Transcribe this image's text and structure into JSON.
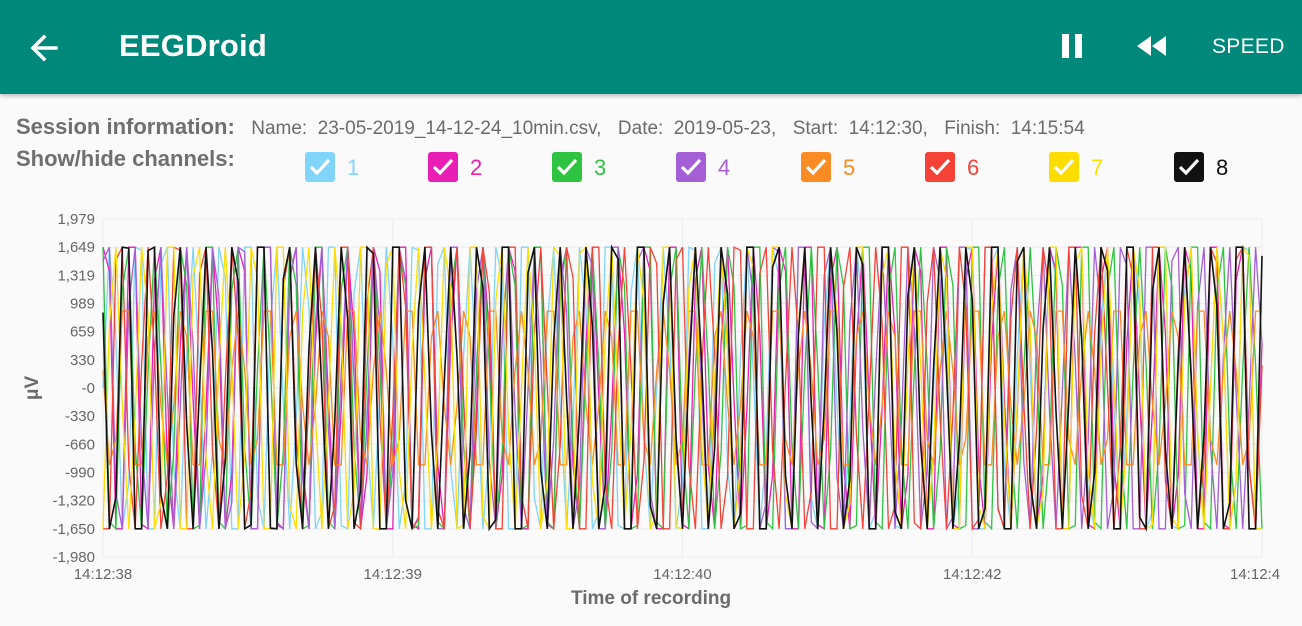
{
  "appbar": {
    "title": "EEGDroid",
    "speed_label": "SPEED",
    "back_icon": "arrow-left-icon",
    "pause_icon": "pause-icon",
    "rewind_icon": "rewind-icon",
    "background": "#00897b"
  },
  "session": {
    "label": "Session information:",
    "name_key": "Name:",
    "name_value": "23-05-2019_14-12-24_10min.csv,",
    "date_key": "Date:",
    "date_value": "2019-05-23,",
    "start_key": "Start:",
    "start_value": "14:12:30,",
    "finish_key": "Finish:",
    "finish_value": "14:15:54"
  },
  "channels": {
    "label": "Show/hide channels:",
    "items": [
      {
        "label": "1",
        "color": "#81d4fa",
        "checked": true
      },
      {
        "label": "2",
        "color": "#e91eb4",
        "checked": true
      },
      {
        "label": "3",
        "color": "#2ec442",
        "checked": true
      },
      {
        "label": "4",
        "color": "#a45fd6",
        "checked": true
      },
      {
        "label": "5",
        "color": "#fb8c24",
        "checked": true
      },
      {
        "label": "6",
        "color": "#f44336",
        "checked": true
      },
      {
        "label": "7",
        "color": "#ffdd00",
        "checked": true
      },
      {
        "label": "8",
        "color": "#111111",
        "checked": true
      }
    ]
  },
  "chart_data": {
    "type": "line",
    "xlabel": "Time of recording",
    "ylabel": "μV",
    "y_ticks": [
      "1,979",
      "1,649",
      "1,319",
      "989",
      "659",
      "330",
      "-0",
      "-330",
      "-660",
      "-990",
      "-1,320",
      "-1,650",
      "-1,980"
    ],
    "ylim": [
      -1980,
      1979
    ],
    "x_ticks": [
      "14:12:38",
      "14:12:39",
      "14:12:40",
      "14:12:42",
      "14:12:4"
    ],
    "grid": true,
    "legend": "none",
    "clip_range": [
      -1650,
      1649
    ],
    "series": [
      {
        "color": "#81d4fa",
        "amplitude": 1649,
        "period_samples": 4.3,
        "phase": 0.0
      },
      {
        "color": "#e91eb4",
        "amplitude": 1649,
        "period_samples": 4.2,
        "phase": 1.1
      },
      {
        "color": "#2ec442",
        "amplitude": 1649,
        "period_samples": 4.25,
        "phase": 2.3
      },
      {
        "color": "#a45fd6",
        "amplitude": 1649,
        "period_samples": 4.15,
        "phase": 0.6
      },
      {
        "color": "#fb8c24",
        "amplitude": 900,
        "period_samples": 4.4,
        "phase": 3.0
      },
      {
        "color": "#f44336",
        "amplitude": 1649,
        "period_samples": 4.35,
        "phase": 4.0
      },
      {
        "color": "#ffdd00",
        "amplitude": 1649,
        "period_samples": 4.28,
        "phase": 5.1
      },
      {
        "color": "#111111",
        "amplitude": 1649,
        "period_samples": 4.22,
        "phase": 2.8
      }
    ]
  }
}
